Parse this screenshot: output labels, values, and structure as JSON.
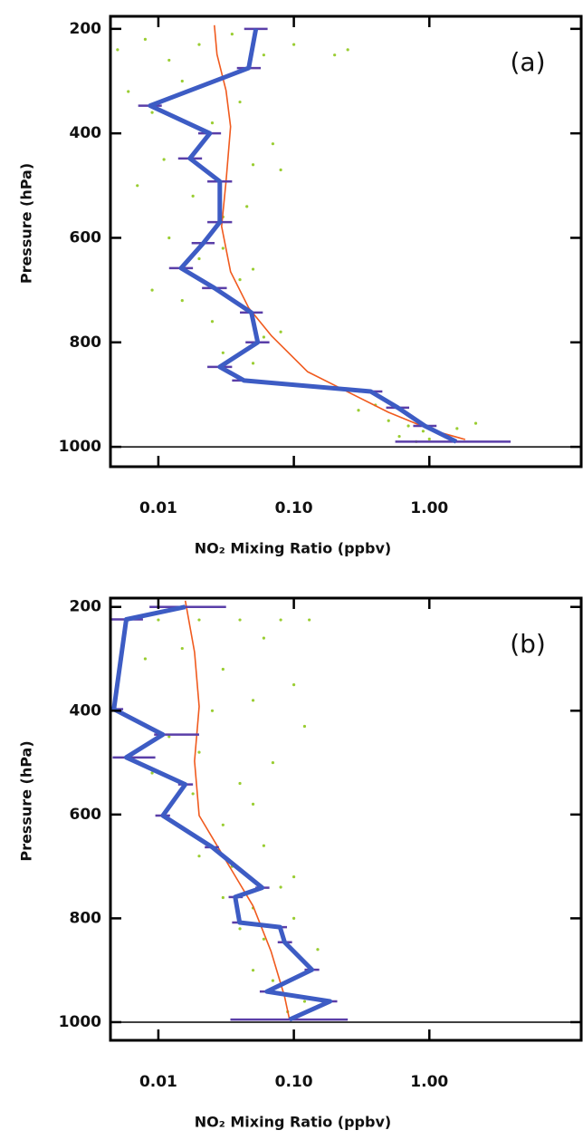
{
  "chart_data": [
    {
      "type": "line",
      "annotation": "(a)",
      "xlabel": "NO₂ Mixing Ratio (ppbv)",
      "ylabel": "Pressure (hPa)",
      "xscale": "log",
      "xlim": [
        0.00443,
        13.2
      ],
      "xticks": [
        0.01,
        {
          "value": 0.1,
          "label": "0.10"
        },
        {
          "value": 1,
          "label": "1.00"
        }
      ],
      "ylim": [
        1038,
        176
      ],
      "yticks": [
        200,
        400,
        600,
        800,
        1000
      ],
      "hline": 1000,
      "series": [
        {
          "style": "scatter",
          "color": "#9acd32",
          "x": [
            0.005,
            0.008,
            0.012,
            0.02,
            0.035,
            0.06,
            0.1,
            0.2,
            0.25,
            0.006,
            0.009,
            0.015,
            0.025,
            0.04,
            0.07,
            0.05,
            0.007,
            0.011,
            0.018,
            0.03,
            0.045,
            0.08,
            0.012,
            0.02,
            0.03,
            0.05,
            0.009,
            0.015,
            0.025,
            0.04,
            0.06,
            0.03,
            0.05,
            0.08,
            0.3,
            0.5,
            0.7,
            0.9,
            1.2,
            1.6,
            2.2,
            0.6,
            0.8,
            1.0,
            0.4
          ],
          "y": [
            240,
            220,
            260,
            230,
            210,
            250,
            230,
            250,
            240,
            320,
            360,
            300,
            380,
            340,
            420,
            460,
            500,
            450,
            520,
            560,
            540,
            470,
            600,
            640,
            620,
            660,
            700,
            720,
            760,
            680,
            790,
            820,
            840,
            780,
            930,
            950,
            960,
            970,
            975,
            965,
            955,
            980,
            990,
            985,
            920
          ]
        },
        {
          "style": "line",
          "color": "#f05a1e",
          "x": [
            0.0259,
            0.0271,
            0.0316,
            0.0341,
            0.0316,
            0.0293,
            0.0341,
            0.0464,
            0.0681,
            0.126,
            0.233,
            0.5,
            1.07,
            1.84
          ],
          "y": [
            193,
            249,
            318,
            387,
            492,
            578,
            665,
            734,
            787,
            856,
            891,
            934,
            969,
            986
          ]
        },
        {
          "style": "line",
          "color": "#3d5cc4",
          "error_color": "#5a3ea8",
          "x": [
            0.0525,
            0.0464,
            0.0087,
            0.024,
            0.0171,
            0.0284,
            0.0284,
            0.0215,
            0.0147,
            0.0259,
            0.0486,
            0.0541,
            0.0284,
            0.043,
            0.369,
            0.585,
            0.927,
            1.58
          ],
          "y": [
            200,
            275,
            347,
            400,
            448,
            492,
            570,
            610,
            658,
            696,
            743,
            800,
            847,
            873,
            894,
            925,
            960,
            990
          ],
          "error_low": [
            0.043,
            0.038,
            0.0071,
            0.0197,
            0.014,
            0.023,
            0.023,
            0.0176,
            0.012,
            0.021,
            0.04,
            0.044,
            0.023,
            0.035,
            0.3,
            0.48,
            0.76,
            0.56
          ],
          "error_high": [
            0.064,
            0.057,
            0.0106,
            0.029,
            0.021,
            0.035,
            0.035,
            0.026,
            0.018,
            0.032,
            0.059,
            0.066,
            0.035,
            0.052,
            0.45,
            0.71,
            1.13,
            3.98
          ]
        }
      ]
    },
    {
      "type": "line",
      "annotation": "(b)",
      "xlabel": "NO₂ Mixing Ratio (ppbv)",
      "ylabel": "Pressure (hPa)",
      "xscale": "log",
      "xlim": [
        0.00443,
        13.2
      ],
      "xticks": [
        0.01,
        {
          "value": 0.1,
          "label": "0.10"
        },
        {
          "value": 1,
          "label": "1.00"
        }
      ],
      "ylim": [
        1035,
        183
      ],
      "yticks": [
        200,
        400,
        600,
        800,
        1000
      ],
      "hline": 1000,
      "series": [
        {
          "style": "scatter",
          "color": "#9acd32",
          "x": [
            0.006,
            0.01,
            0.02,
            0.04,
            0.08,
            0.13,
            0.008,
            0.015,
            0.03,
            0.06,
            0.1,
            0.007,
            0.012,
            0.025,
            0.05,
            0.12,
            0.009,
            0.02,
            0.04,
            0.07,
            0.011,
            0.018,
            0.03,
            0.05,
            0.02,
            0.035,
            0.06,
            0.1,
            0.03,
            0.05,
            0.08,
            0.04,
            0.06,
            0.1,
            0.15,
            0.05,
            0.07,
            0.12,
            0.09
          ],
          "y": [
            225,
            225,
            225,
            225,
            225,
            225,
            300,
            280,
            320,
            260,
            350,
            420,
            450,
            400,
            380,
            430,
            520,
            480,
            540,
            500,
            600,
            560,
            620,
            580,
            680,
            700,
            660,
            720,
            760,
            780,
            740,
            820,
            840,
            800,
            860,
            900,
            920,
            960,
            980
          ]
        },
        {
          "style": "line",
          "color": "#f05a1e",
          "x": [
            0.0158,
            0.0185,
            0.02,
            0.0185,
            0.02,
            0.0316,
            0.05,
            0.068,
            0.0855,
            0.0929
          ],
          "y": [
            188,
            287,
            392,
            497,
            602,
            689,
            776,
            864,
            951,
            995
          ]
        },
        {
          "style": "line",
          "color": "#3d5cc4",
          "error_color": "#5a3ea8",
          "x": [
            0.0158,
            0.0058,
            0.0047,
            0.0108,
            0.0058,
            0.0158,
            0.0108,
            0.025,
            0.0584,
            0.0369,
            0.0398,
            0.079,
            0.0855,
            0.136,
            0.0631,
            0.185,
            0.0929
          ],
          "y": [
            200,
            224,
            397,
            446,
            490,
            542,
            602,
            663,
            741,
            759,
            808,
            817,
            846,
            899,
            941,
            960,
            995
          ],
          "error_low": [
            0.0086,
            0.0044,
            0.0044,
            0.0093,
            0.0046,
            0.014,
            0.0095,
            0.022,
            0.052,
            0.033,
            0.035,
            0.07,
            0.076,
            0.12,
            0.056,
            0.164,
            0.034
          ],
          "error_high": [
            0.0316,
            0.0077,
            0.0055,
            0.02,
            0.0095,
            0.018,
            0.0122,
            0.028,
            0.066,
            0.042,
            0.045,
            0.089,
            0.097,
            0.154,
            0.071,
            0.209,
            0.25
          ]
        }
      ]
    }
  ]
}
